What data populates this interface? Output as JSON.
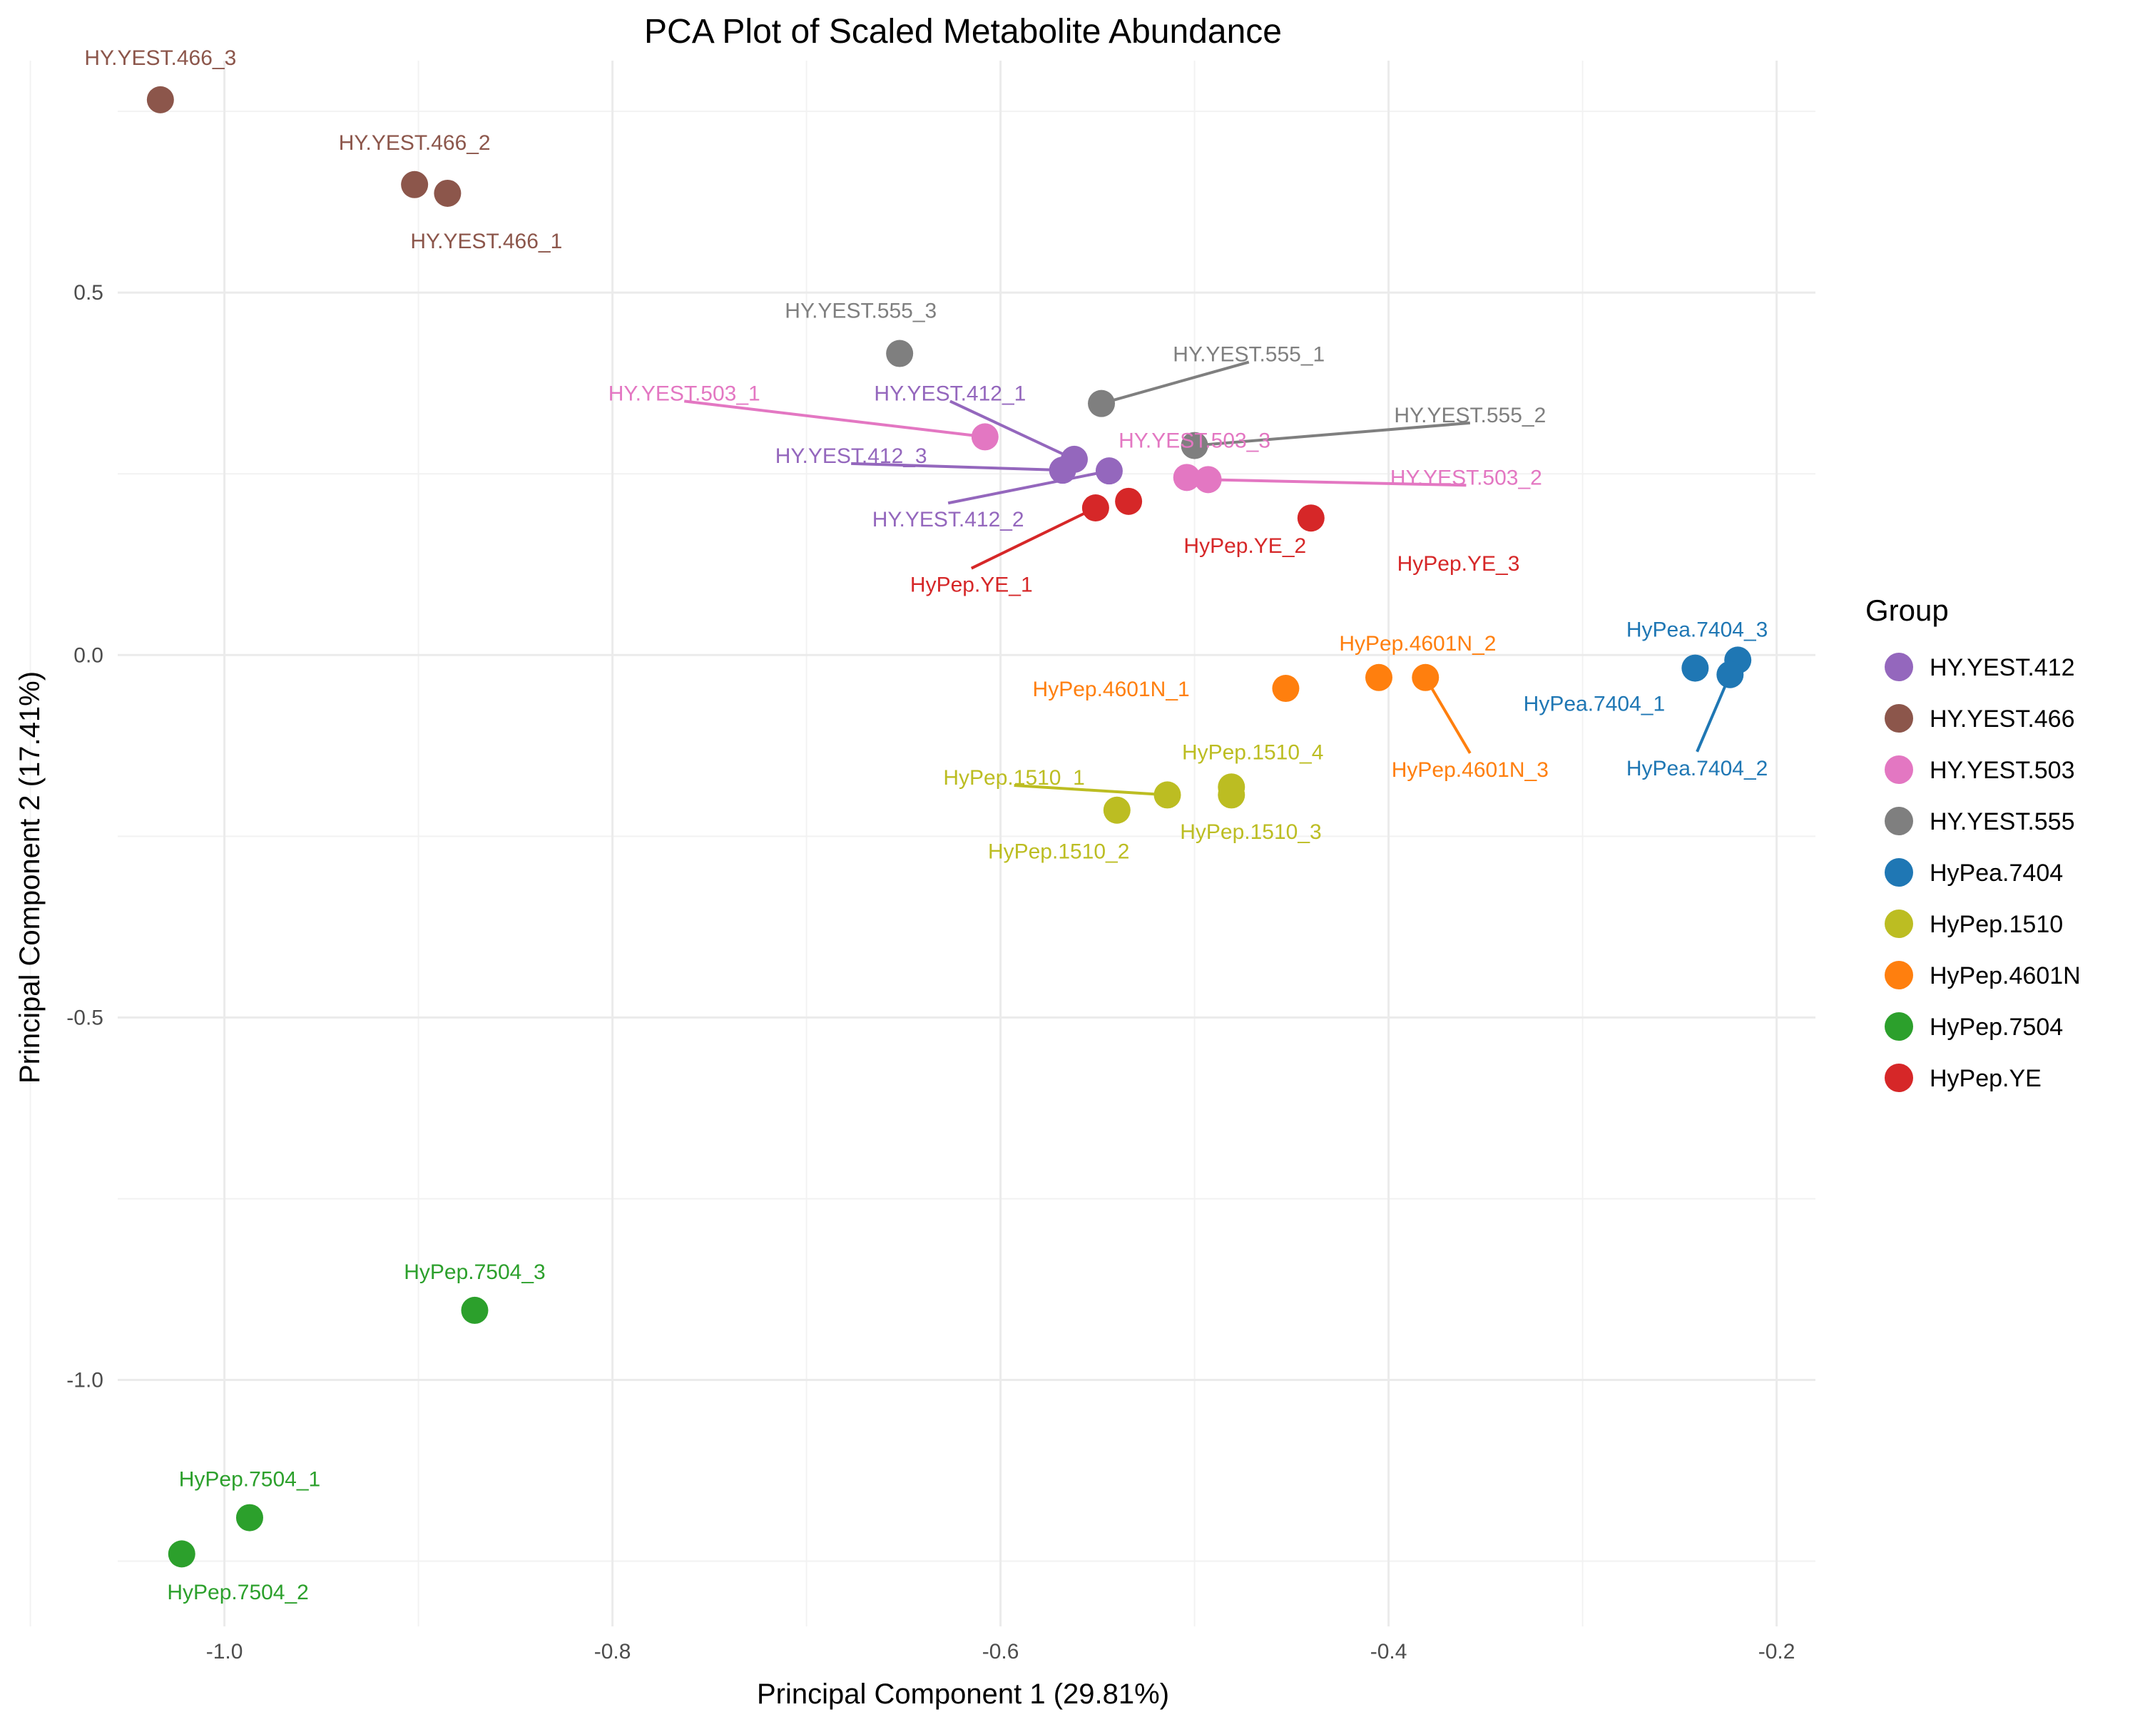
{
  "chart_data": {
    "type": "scatter",
    "title": "PCA Plot of Scaled Metabolite Abundance",
    "xlabel": "Principal Component 1 (29.81%)",
    "ylabel": "Principal Component 2 (17.41%)",
    "xlim": [
      -1.055,
      -0.18
    ],
    "ylim": [
      -1.34,
      0.82
    ],
    "x_ticks": [
      -1.0,
      -0.8,
      -0.6,
      -0.4,
      -0.2
    ],
    "x_tick_labels": [
      "-1.0",
      "-0.8",
      "-0.6",
      "-0.4",
      "-0.2"
    ],
    "y_ticks": [
      -1.0,
      -0.5,
      0.0,
      0.5
    ],
    "y_tick_labels": [
      "-1.0",
      "-0.5",
      "0.0",
      "0.5"
    ],
    "grid": true,
    "legend": {
      "title": "Group",
      "position": "right"
    },
    "groups": [
      {
        "name": "HY.YEST.412",
        "color": "#9467bd"
      },
      {
        "name": "HY.YEST.466",
        "color": "#8c564b"
      },
      {
        "name": "HY.YEST.503",
        "color": "#e377c2"
      },
      {
        "name": "HY.YEST.555",
        "color": "#7f7f7f"
      },
      {
        "name": "HyPea.7404",
        "color": "#1f77b4"
      },
      {
        "name": "HyPep.1510",
        "color": "#bcbd22"
      },
      {
        "name": "HyPep.4601N",
        "color": "#ff7f0e"
      },
      {
        "name": "HyPep.7504",
        "color": "#2ca02c"
      },
      {
        "name": "HyPep.YE",
        "color": "#d62728"
      }
    ],
    "points": [
      {
        "label": "HY.YEST.466_3",
        "group": "HY.YEST.466",
        "x": -1.033,
        "y": 0.766,
        "lx": -1.033,
        "ly": 0.825
      },
      {
        "label": "HY.YEST.466_2",
        "group": "HY.YEST.466",
        "x": -0.902,
        "y": 0.649,
        "lx": -0.902,
        "ly": 0.708
      },
      {
        "label": "HY.YEST.466_1",
        "group": "HY.YEST.466",
        "x": -0.885,
        "y": 0.637,
        "lx": -0.865,
        "ly": 0.572
      },
      {
        "label": "HY.YEST.555_3",
        "group": "HY.YEST.555",
        "x": -0.652,
        "y": 0.416,
        "lx": -0.672,
        "ly": 0.476
      },
      {
        "label": "HY.YEST.555_1",
        "group": "HY.YEST.555",
        "x": -0.548,
        "y": 0.347,
        "lx": -0.472,
        "ly": 0.416,
        "leader": true
      },
      {
        "label": "HY.YEST.555_2",
        "group": "HY.YEST.555",
        "x": -0.5,
        "y": 0.289,
        "lx": -0.358,
        "ly": 0.332,
        "leader": true
      },
      {
        "label": "HY.YEST.503_1",
        "group": "HY.YEST.503",
        "x": -0.608,
        "y": 0.301,
        "lx": -0.763,
        "ly": 0.362,
        "leader": true
      },
      {
        "label": "HY.YEST.412_1",
        "group": "HY.YEST.412",
        "x": -0.562,
        "y": 0.27,
        "lx": -0.626,
        "ly": 0.362,
        "leader": true
      },
      {
        "label": "HY.YEST.412_3",
        "group": "HY.YEST.412",
        "x": -0.568,
        "y": 0.255,
        "lx": -0.677,
        "ly": 0.276,
        "leader": true
      },
      {
        "label": "HY.YEST.412_2",
        "group": "HY.YEST.412",
        "x": -0.544,
        "y": 0.254,
        "lx": -0.627,
        "ly": 0.188,
        "leader": true
      },
      {
        "label": "HY.YEST.503_3",
        "group": "HY.YEST.503",
        "x": -0.504,
        "y": 0.245,
        "lx": -0.5,
        "ly": 0.297
      },
      {
        "label": "HY.YEST.503_2",
        "group": "HY.YEST.503",
        "x": -0.493,
        "y": 0.242,
        "lx": -0.36,
        "ly": 0.246,
        "leader": true
      },
      {
        "label": "HyPep.YE_1",
        "group": "HyPep.YE",
        "x": -0.551,
        "y": 0.203,
        "lx": -0.615,
        "ly": 0.098,
        "leader": true
      },
      {
        "label": "HyPep.YE_2",
        "group": "HyPep.YE",
        "x": -0.534,
        "y": 0.212,
        "lx": -0.474,
        "ly": 0.152
      },
      {
        "label": "HyPep.YE_3",
        "group": "HyPep.YE",
        "x": -0.44,
        "y": 0.189,
        "lx": -0.364,
        "ly": 0.127
      },
      {
        "label": "HyPep.4601N_2",
        "group": "HyPep.4601N",
        "x": -0.405,
        "y": -0.031,
        "lx": -0.385,
        "ly": 0.017
      },
      {
        "label": "HyPep.4601N_1",
        "group": "HyPep.4601N",
        "x": -0.453,
        "y": -0.046,
        "lx": -0.543,
        "ly": -0.046
      },
      {
        "label": "HyPep.4601N_3",
        "group": "HyPep.4601N",
        "x": -0.381,
        "y": -0.031,
        "lx": -0.358,
        "ly": -0.157,
        "leader": true
      },
      {
        "label": "HyPea.7404_3",
        "group": "HyPea.7404",
        "x": -0.22,
        "y": -0.007,
        "lx": -0.241,
        "ly": 0.036
      },
      {
        "label": "HyPea.7404_1",
        "group": "HyPea.7404",
        "x": -0.242,
        "y": -0.018,
        "lx": -0.294,
        "ly": -0.066
      },
      {
        "label": "HyPea.7404_2",
        "group": "HyPea.7404",
        "x": -0.224,
        "y": -0.027,
        "lx": -0.241,
        "ly": -0.155,
        "leader": true
      },
      {
        "label": "HyPep.1510_4",
        "group": "HyPep.1510",
        "x": -0.481,
        "y": -0.182,
        "lx": -0.47,
        "ly": -0.133
      },
      {
        "label": "HyPep.1510_3",
        "group": "HyPep.1510",
        "x": -0.481,
        "y": -0.193,
        "lx": -0.471,
        "ly": -0.243
      },
      {
        "label": "HyPep.1510_1",
        "group": "HyPep.1510",
        "x": -0.514,
        "y": -0.193,
        "lx": -0.593,
        "ly": -0.168,
        "leader": true
      },
      {
        "label": "HyPep.1510_2",
        "group": "HyPep.1510",
        "x": -0.54,
        "y": -0.214,
        "lx": -0.57,
        "ly": -0.27
      },
      {
        "label": "HyPep.7504_3",
        "group": "HyPep.7504",
        "x": -0.871,
        "y": -0.904,
        "lx": -0.871,
        "ly": -0.85
      },
      {
        "label": "HyPep.7504_1",
        "group": "HyPep.7504",
        "x": -0.987,
        "y": -1.19,
        "lx": -0.987,
        "ly": -1.136
      },
      {
        "label": "HyPep.7504_2",
        "group": "HyPep.7504",
        "x": -1.022,
        "y": -1.24,
        "lx": -0.993,
        "ly": -1.292
      }
    ]
  }
}
